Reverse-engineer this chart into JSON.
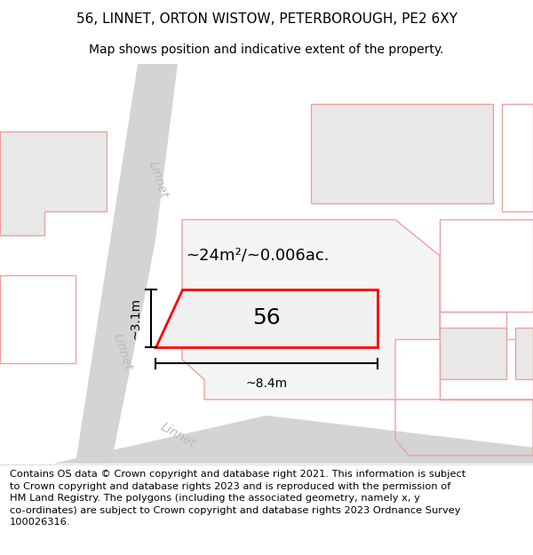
{
  "title_line1": "56, LINNET, ORTON WISTOW, PETERBOROUGH, PE2 6XY",
  "title_line2": "Map shows position and indicative extent of the property.",
  "footer_text": "Contains OS data © Crown copyright and database right 2021. This information is subject\nto Crown copyright and database rights 2023 and is reproduced with the permission of\nHM Land Registry. The polygons (including the associated geometry, namely x, y\nco-ordinates) are subject to Crown copyright and database rights 2023 Ordnance Survey\n100026316.",
  "bg_color": "#ffffff",
  "road_color": "#d4d4d4",
  "building_fill": "#e8e8e8",
  "building_edge_pink": "#f0a0a0",
  "highlight_fill": "#ebebeb",
  "highlight_edge": "#ff0000",
  "label_56": "56",
  "area_label": "~24m²/~0.006ac.",
  "dim_width": "~8.4m",
  "dim_height": "~3.1m",
  "title_fontsize": 11,
  "subtitle_fontsize": 10,
  "footer_fontsize": 8.2,
  "road_label_color": "#bbbbbb",
  "road_label_size": 10
}
